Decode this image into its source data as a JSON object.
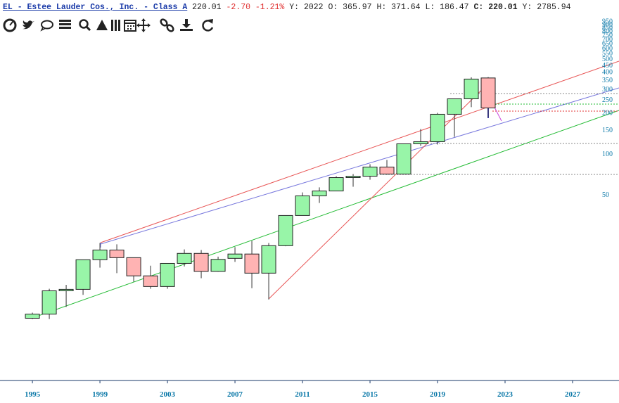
{
  "header": {
    "title": "EL - Estee Lauder Cos., Inc. - Class A",
    "last": "220.01",
    "change": "-2.70",
    "change_pct": "-1.21%",
    "ohlc": "Y: 2022 O: 365.97 H: 371.64 L: 186.47",
    "close_label": "C:",
    "close": "220.01",
    "volume": "Y: 2785.94"
  },
  "chart_data": {
    "type": "candlestick",
    "x": [
      1995,
      1996,
      1997,
      1998,
      1999,
      2000,
      2001,
      2002,
      2003,
      2004,
      2005,
      2006,
      2007,
      2008,
      2009,
      2010,
      2011,
      2012,
      2013,
      2014,
      2015,
      2016,
      2017,
      2018,
      2019,
      2020,
      2021,
      2022
    ],
    "open": [
      6.18,
      6.63,
      9.85,
      10.1,
      16.7,
      19.7,
      17.3,
      12.7,
      10.6,
      15.7,
      18.6,
      13.7,
      17.1,
      18.4,
      13.3,
      21.2,
      35.4,
      49.4,
      53.7,
      67.4,
      69,
      80.6,
      71.6,
      119.6,
      124,
      197.6,
      256.8,
      365.97
    ],
    "high": [
      6.8,
      10.2,
      10.9,
      16.7,
      22.2,
      21.7,
      17.3,
      15.1,
      15.7,
      19.9,
      19.7,
      17.6,
      20.7,
      23,
      22.2,
      35.4,
      52.4,
      57.1,
      69,
      71.6,
      84.6,
      91,
      119.6,
      153.8,
      202.5,
      256.8,
      370,
      371.64
    ],
    "low": [
      6.1,
      6.1,
      7.5,
      9.2,
      14.6,
      13.3,
      11.5,
      10.2,
      10.2,
      14.9,
      12.2,
      13.6,
      16.1,
      10.3,
      8.5,
      21,
      35.4,
      43.8,
      53.7,
      57.7,
      65,
      70.8,
      71.6,
      115.4,
      118.2,
      134.7,
      223,
      186.47
    ],
    "close": [
      6.63,
      9.85,
      10.1,
      16.7,
      19.7,
      17.3,
      12.7,
      10.6,
      15.7,
      18.6,
      13.7,
      16.8,
      18.4,
      13.3,
      21.2,
      35.4,
      49.4,
      53.7,
      67.4,
      69,
      80.6,
      71.6,
      119.6,
      124,
      197.6,
      256.8,
      359.2,
      220.01
    ],
    "up_color": "#98f5a8",
    "down_color": "#ffb3b3",
    "xlim": [
      1993.08,
      2029.75
    ],
    "xticks": [
      1995,
      1999,
      2003,
      2007,
      2011,
      2015,
      2019,
      2023,
      2027
    ],
    "ylim": [
      2.2,
      950
    ],
    "log_scale": true,
    "yticks": [
      50,
      100,
      150,
      200,
      250,
      300,
      350,
      400,
      450,
      500,
      550,
      600,
      650,
      700,
      750,
      800,
      850,
      900,
      950
    ]
  }
}
